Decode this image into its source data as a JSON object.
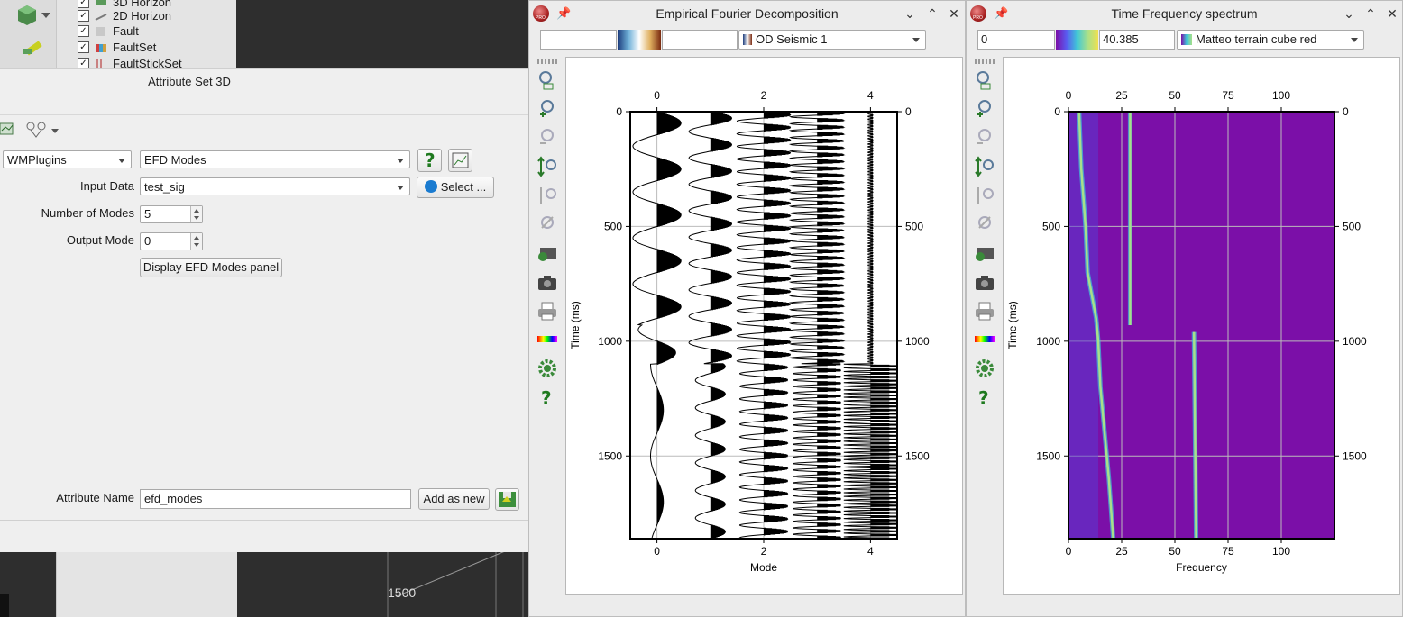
{
  "tree": {
    "items": [
      {
        "label": "3D Horizon",
        "checked": true
      },
      {
        "label": "2D Horizon",
        "checked": true
      },
      {
        "label": "Fault",
        "checked": true
      },
      {
        "label": "FaultSet",
        "checked": true
      },
      {
        "label": "FaultStickSet",
        "checked": true
      }
    ]
  },
  "background": {
    "map_label": "1500"
  },
  "attribute_dialog": {
    "title": "Attribute Set 3D",
    "plugin_combo": "WMPlugins",
    "attribute_combo": "EFD Modes",
    "input_label": "Input Data",
    "input_value": "test_sig",
    "select_button": "Select ...",
    "modes_label": "Number of Modes",
    "modes_value": "5",
    "output_label": "Output Mode",
    "output_value": "0",
    "panel_button": "Display EFD Modes panel",
    "name_label": "Attribute Name",
    "name_value": "efd_modes",
    "add_button": "Add as new"
  },
  "efd_window": {
    "title": "Empirical Fourier Decomposition",
    "min_value": "",
    "max_value": "",
    "colortable": "OD Seismic 1",
    "colors": {
      "fill": "#000000",
      "wiggle": "#000000"
    }
  },
  "tf_window": {
    "title": "Time Frequency spectrum",
    "min_value": "0",
    "max_value": "40.385",
    "colortable": "Matteo terrain cube red",
    "colors": {
      "background": "#7b0fa8",
      "ridge": "#a8e08a",
      "edge": "#3fc7d8"
    }
  },
  "chart_data": [
    {
      "type": "wiggle",
      "title": "Empirical Fourier Decomposition",
      "xlabel": "Mode",
      "ylabel": "Time (ms)",
      "xticks": [
        "0",
        "2",
        "4"
      ],
      "yticks": [
        "0",
        "500",
        "1000",
        "1500"
      ],
      "xlim": [
        -0.5,
        4.5
      ],
      "ylim": [
        0,
        1860
      ],
      "traces": [
        0,
        1,
        2,
        3,
        4
      ]
    },
    {
      "type": "heatmap",
      "title": "Time Frequency spectrum",
      "xlabel": "Frequency",
      "ylabel": "Time (ms)",
      "xticks": [
        "0",
        "25",
        "50",
        "75",
        "100"
      ],
      "yticks": [
        "0",
        "500",
        "1000",
        "1500"
      ],
      "xlim": [
        0,
        125
      ],
      "ylim": [
        0,
        1860
      ],
      "ridges": [
        {
          "time": [
            0,
            250,
            500,
            700,
            900,
            1000,
            1200,
            1400,
            1600,
            1860
          ],
          "freq": [
            5,
            6,
            8,
            9,
            13,
            14,
            15,
            17,
            19,
            21
          ]
        },
        {
          "time": [
            0,
            930
          ],
          "freq": [
            29,
            29
          ]
        },
        {
          "time": [
            960,
            1860
          ],
          "freq": [
            59,
            60
          ]
        }
      ]
    }
  ]
}
